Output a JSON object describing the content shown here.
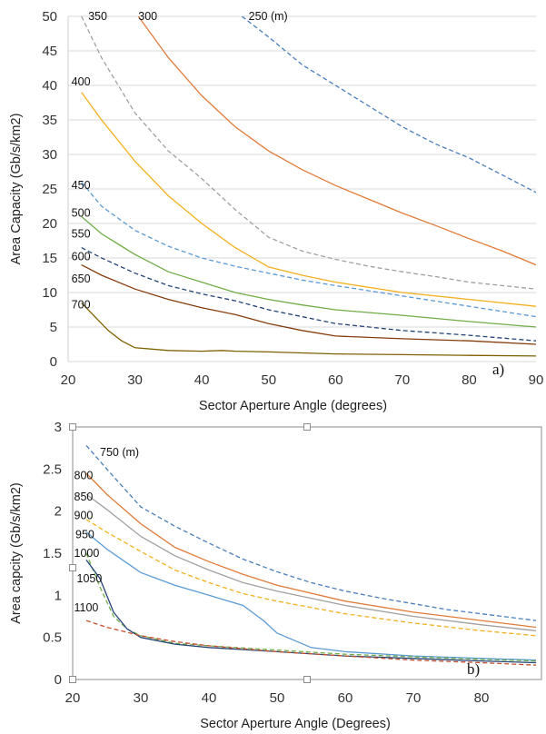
{
  "chart_data": [
    {
      "type": "line",
      "panel_label": "a)",
      "xlabel": "Sector Aperture Angle (degrees)",
      "ylabel": "Area Capacity (Gb/s/km2)",
      "xlim": [
        20,
        90
      ],
      "ylim": [
        0,
        50
      ],
      "xticks": [
        20,
        30,
        40,
        50,
        60,
        70,
        80,
        90
      ],
      "yticks": [
        0,
        5,
        10,
        15,
        20,
        25,
        30,
        35,
        40,
        45,
        50
      ],
      "grid": "horizontal",
      "series": [
        {
          "name": "250 (m)",
          "color": "#4a7ebb",
          "dash": "dashed",
          "label_at": [
            47,
            50
          ],
          "x": [
            46,
            50,
            55,
            60,
            65,
            70,
            75,
            80,
            85,
            90
          ],
          "y": [
            50,
            47,
            43,
            40,
            37,
            34,
            31.5,
            29.5,
            27,
            24.5
          ]
        },
        {
          "name": "300",
          "color": "#e07b39",
          "dash": "solid",
          "label_at": [
            30.5,
            50
          ],
          "x": [
            30.5,
            35,
            40,
            45,
            50,
            55,
            60,
            65,
            70,
            75,
            80,
            85,
            90
          ],
          "y": [
            50,
            44,
            38.5,
            34,
            30.5,
            27.8,
            25.5,
            23.5,
            21.5,
            19.7,
            17.8,
            16,
            14
          ]
        },
        {
          "name": "350",
          "color": "#a0a0a0",
          "dash": "dashed",
          "label_at": [
            23,
            50
          ],
          "x": [
            22,
            25,
            30,
            35,
            40,
            45,
            50,
            55,
            60,
            65,
            70,
            75,
            80,
            85,
            90
          ],
          "y": [
            50,
            44,
            36,
            30.5,
            26.5,
            22,
            18,
            16,
            14.8,
            13.8,
            13,
            12.3,
            11.5,
            11,
            10.5
          ]
        },
        {
          "name": "400",
          "color": "#f2b01e",
          "dash": "solid",
          "label_at": [
            20.5,
            40.5
          ],
          "x": [
            22,
            25,
            30,
            35,
            40,
            45,
            50,
            55,
            60,
            70,
            80,
            90
          ],
          "y": [
            39,
            35,
            29,
            24,
            20,
            16.5,
            13.7,
            12.5,
            11.5,
            10,
            9,
            8
          ]
        },
        {
          "name": "450",
          "color": "#5b9bd5",
          "dash": "dashed",
          "label_at": [
            20.5,
            25.5
          ],
          "x": [
            22,
            25,
            30,
            35,
            40,
            45,
            50,
            55,
            60,
            70,
            80,
            90
          ],
          "y": [
            26,
            22.5,
            19,
            16.7,
            15,
            13.8,
            12.8,
            11.8,
            11,
            9.5,
            8,
            6.5
          ]
        },
        {
          "name": "500",
          "color": "#70ad47",
          "dash": "solid",
          "label_at": [
            20.5,
            21.5
          ],
          "x": [
            22,
            25,
            30,
            35,
            40,
            45,
            50,
            55,
            60,
            70,
            80,
            90
          ],
          "y": [
            21,
            18.5,
            15.5,
            13,
            11.5,
            10,
            9,
            8.2,
            7.5,
            6.7,
            5.8,
            5
          ]
        },
        {
          "name": "550",
          "color": "#264478",
          "dash": "dashed",
          "label_at": [
            20.5,
            18.5
          ],
          "x": [
            22,
            25,
            30,
            35,
            40,
            45,
            50,
            55,
            60,
            70,
            80,
            90
          ],
          "y": [
            16.5,
            15,
            12.8,
            11,
            9.8,
            8.8,
            7.5,
            6.5,
            5.5,
            4.5,
            3.8,
            3
          ]
        },
        {
          "name": "600",
          "color": "#843c0c",
          "dash": "solid",
          "label_at": [
            20.5,
            15.2
          ],
          "x": [
            22,
            25,
            30,
            35,
            40,
            45,
            50,
            55,
            60,
            70,
            80,
            90
          ],
          "y": [
            14,
            12.5,
            10.5,
            9,
            7.8,
            6.8,
            5.5,
            4.5,
            3.7,
            3.3,
            3,
            2.5
          ]
        },
        {
          "name": "650",
          "color": "#636363",
          "dash": "dashed",
          "label_at": [
            20.5,
            12
          ]
        },
        {
          "name": "700",
          "color": "#7f6000",
          "dash": "solid",
          "label_at": [
            20.5,
            8.2
          ],
          "x": [
            22,
            24,
            26,
            28,
            30,
            35,
            40,
            43,
            45,
            50,
            60,
            70,
            80,
            90
          ],
          "y": [
            8.5,
            6.5,
            4.5,
            3,
            2,
            1.6,
            1.5,
            1.6,
            1.5,
            1.4,
            1.1,
            1,
            0.9,
            0.8
          ]
        }
      ]
    },
    {
      "type": "line",
      "panel_label": "b)",
      "xlabel": "Sector Aperture Angle (Degrees)",
      "ylabel": "Area capcity (Gb/s/km2)",
      "xlim": [
        20,
        88
      ],
      "ylim": [
        0,
        3
      ],
      "xticks": [
        20,
        30,
        40,
        50,
        60,
        70,
        80
      ],
      "yticks": [
        0,
        0.5,
        1,
        1.5,
        2,
        2.5,
        3
      ],
      "grid": "none",
      "series": [
        {
          "name": "750 (m)",
          "color": "#4a7ebb",
          "dash": "dashed",
          "label_at": [
            24,
            2.7
          ],
          "x": [
            22,
            25,
            30,
            35,
            40,
            45,
            50,
            55,
            60,
            65,
            70,
            75,
            80,
            88
          ],
          "y": [
            2.78,
            2.5,
            2.05,
            1.82,
            1.62,
            1.43,
            1.28,
            1.15,
            1.05,
            0.97,
            0.9,
            0.83,
            0.78,
            0.7
          ]
        },
        {
          "name": "800",
          "color": "#e07b39",
          "dash": "solid",
          "label_at": [
            20.2,
            2.42
          ],
          "x": [
            22,
            25,
            30,
            35,
            40,
            45,
            50,
            60,
            70,
            80,
            88
          ],
          "y": [
            2.45,
            2.2,
            1.85,
            1.57,
            1.4,
            1.25,
            1.12,
            0.93,
            0.8,
            0.7,
            0.62
          ]
        },
        {
          "name": "850",
          "color": "#a0a0a0",
          "dash": "solid",
          "label_at": [
            20.2,
            2.17
          ],
          "x": [
            22,
            25,
            30,
            35,
            40,
            45,
            50,
            60,
            70,
            80,
            88
          ],
          "y": [
            2.2,
            2.02,
            1.7,
            1.47,
            1.3,
            1.15,
            1.05,
            0.88,
            0.75,
            0.65,
            0.58
          ]
        },
        {
          "name": "900",
          "color": "#f2b01e",
          "dash": "dashed",
          "label_at": [
            20.2,
            1.95
          ],
          "x": [
            22,
            25,
            30,
            35,
            40,
            45,
            50,
            60,
            70,
            80,
            88
          ],
          "y": [
            1.9,
            1.75,
            1.52,
            1.3,
            1.15,
            1.02,
            0.93,
            0.78,
            0.67,
            0.58,
            0.52
          ]
        },
        {
          "name": "950",
          "color": "#5b9bd5",
          "dash": "solid",
          "label_at": [
            20.4,
            1.72
          ],
          "x": [
            22,
            25,
            30,
            35,
            40,
            45,
            48,
            50,
            55,
            60,
            70,
            80,
            88
          ],
          "y": [
            1.75,
            1.55,
            1.27,
            1.12,
            1.0,
            0.88,
            0.7,
            0.55,
            0.38,
            0.33,
            0.28,
            0.25,
            0.23
          ]
        },
        {
          "name": "1000",
          "color": "#70ad47",
          "dash": "dashed",
          "label_at": [
            20.2,
            1.5
          ],
          "x": [
            22,
            24,
            26,
            28,
            30,
            35,
            40,
            50,
            60,
            70,
            80,
            88
          ],
          "y": [
            1.5,
            1.1,
            0.75,
            0.6,
            0.52,
            0.43,
            0.4,
            0.35,
            0.3,
            0.27,
            0.24,
            0.22
          ]
        },
        {
          "name": "1050",
          "color": "#264478",
          "dash": "solid",
          "label_at": [
            20.6,
            1.2
          ],
          "x": [
            22,
            24,
            26,
            28,
            30,
            35,
            40,
            50,
            60,
            70,
            80,
            88
          ],
          "y": [
            1.42,
            1.2,
            0.8,
            0.6,
            0.5,
            0.42,
            0.38,
            0.33,
            0.28,
            0.25,
            0.22,
            0.2
          ]
        },
        {
          "name": "1100",
          "color": "#c5522e",
          "dash": "dashed",
          "label_at": [
            20.2,
            0.85
          ],
          "x": [
            22,
            25,
            30,
            35,
            40,
            50,
            60,
            70,
            80,
            88
          ],
          "y": [
            0.7,
            0.62,
            0.52,
            0.45,
            0.4,
            0.33,
            0.28,
            0.23,
            0.2,
            0.17
          ]
        }
      ]
    }
  ]
}
